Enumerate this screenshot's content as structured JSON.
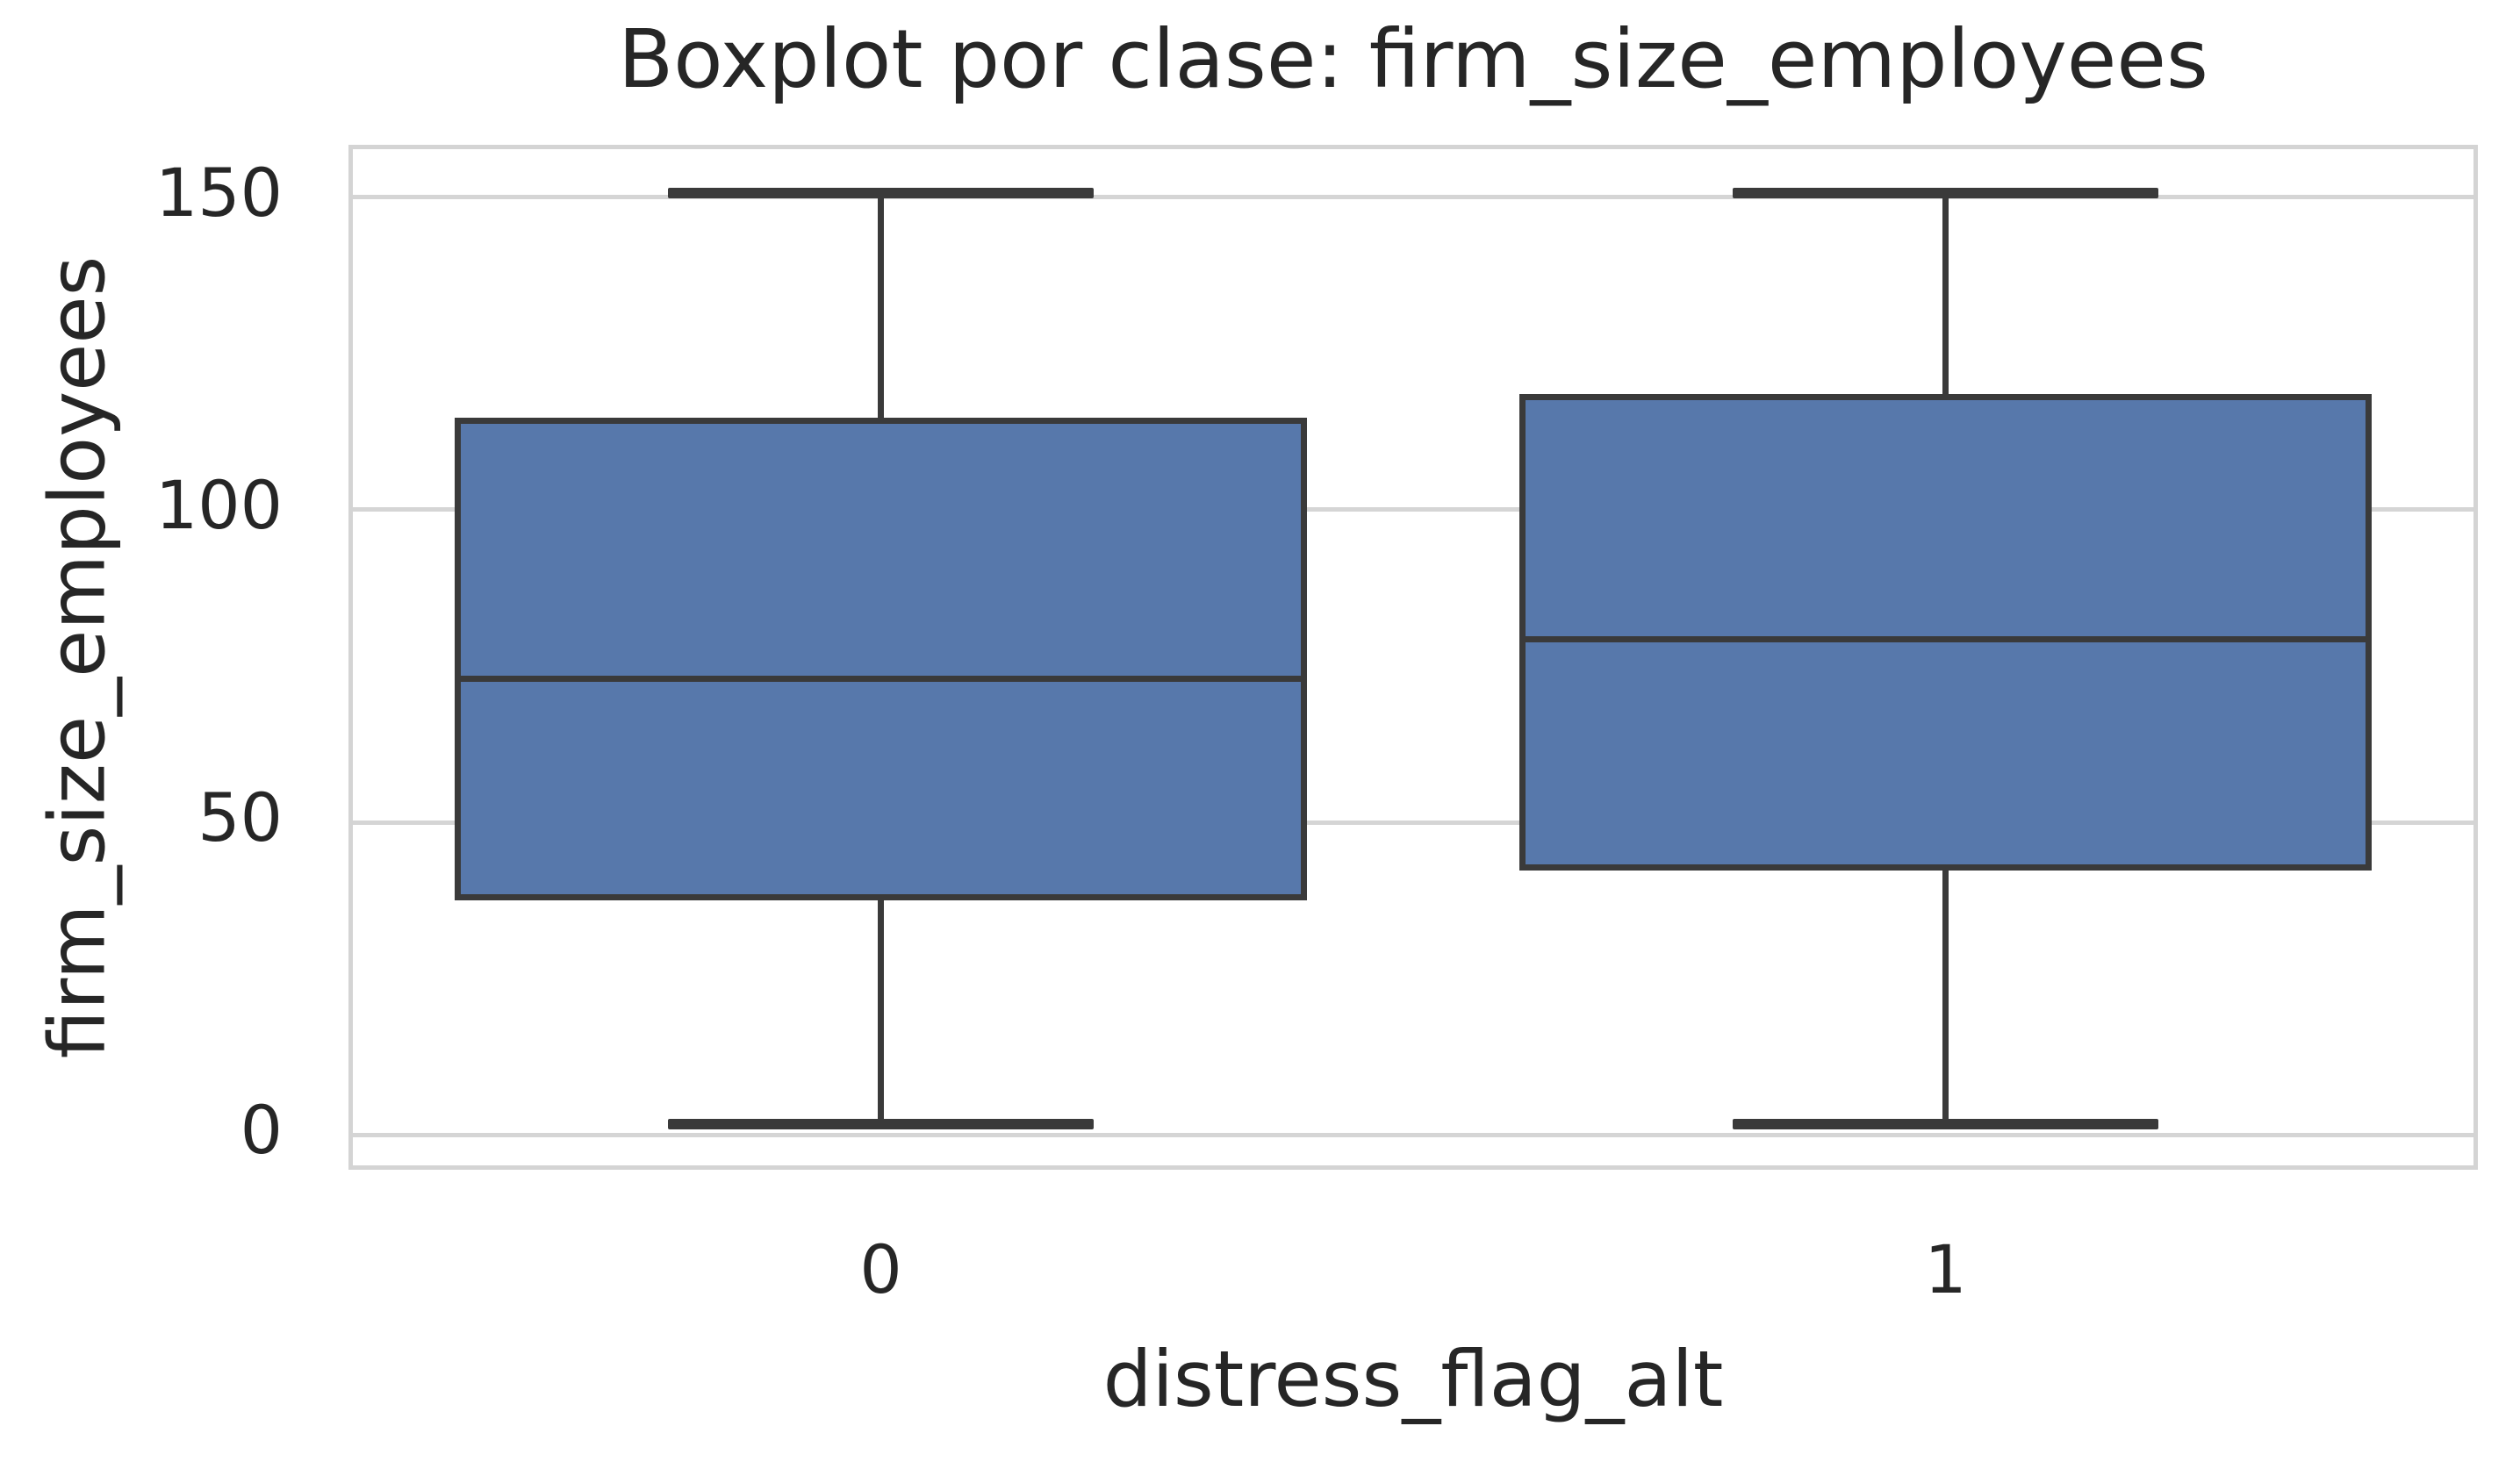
{
  "chart_data": {
    "type": "box",
    "title": "Boxplot por clase: firm_size_employees",
    "xlabel": "distress_flag_alt",
    "ylabel": "firm_size_employees",
    "categories": [
      "0",
      "1"
    ],
    "series": [
      {
        "category": "0",
        "whisker_low": 1,
        "q1": 37.3,
        "median": 72.2,
        "q3": 113.6,
        "whisker_high": 150
      },
      {
        "category": "1",
        "whisker_low": 1,
        "q1": 42.1,
        "median": 78.6,
        "q3": 117.3,
        "whisker_high": 150
      }
    ],
    "yticks": [
      0,
      50,
      100,
      150
    ],
    "xticks": [
      "0",
      "1"
    ],
    "ylim": [
      -6.3,
      157.7
    ],
    "grid": "horizontal",
    "legend": null,
    "colors": {
      "box_fill": "#5778ab",
      "box_edge": "#3a3a3a",
      "whisker": "#3a3a3a",
      "median": "#3a3a3a",
      "grid_line": "#d5d5d5",
      "spine": "#d4d4d4",
      "text": "#262626",
      "background": "#ffffff"
    }
  }
}
